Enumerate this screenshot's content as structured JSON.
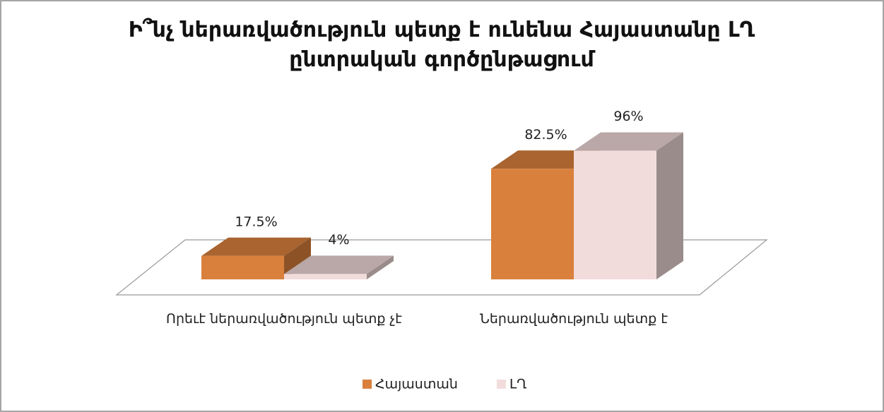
{
  "chart_data": {
    "type": "bar3d",
    "title": "Ի՞նչ ներառվածություն պետք է ունենա Հայաստանը ԼՂ ընտրական գործընթացում",
    "categories": [
      "Որեւէ ներառվածություն պետք չէ",
      "Ներառվածություն պետք է"
    ],
    "series": [
      {
        "name": "Հայաստան",
        "color": "#D9803C",
        "values": [
          17.5,
          82.5
        ],
        "value_labels": [
          "17.5%",
          "82.5%"
        ]
      },
      {
        "name": "ԼՂ",
        "color": "#F2DCDB",
        "values": [
          4,
          96
        ],
        "value_labels": [
          "4%",
          "96%"
        ]
      }
    ],
    "legend": "bottom"
  }
}
